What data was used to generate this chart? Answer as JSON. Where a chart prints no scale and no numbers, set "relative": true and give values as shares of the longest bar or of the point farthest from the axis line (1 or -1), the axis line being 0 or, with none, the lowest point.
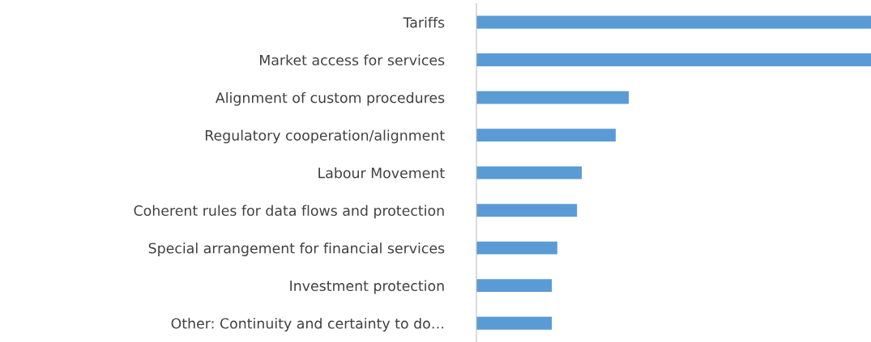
{
  "chart_data": {
    "type": "bar",
    "orientation": "horizontal",
    "relative": true,
    "color": "#5b9bd5",
    "grid": false,
    "legend": false,
    "categories": [
      "Tariffs",
      "Market access for services",
      "Alignment of custom procedures",
      "Regulatory cooperation/alignment",
      "Labour Movement",
      "Coherent rules for data flows and protection",
      "Special arrangement for financial services",
      "Investment protection",
      "Other: Continuity and certainty to do…"
    ],
    "values": [
      1,
      1,
      0.386,
      0.353,
      0.267,
      0.255,
      0.205,
      0.191,
      0.191
    ]
  }
}
